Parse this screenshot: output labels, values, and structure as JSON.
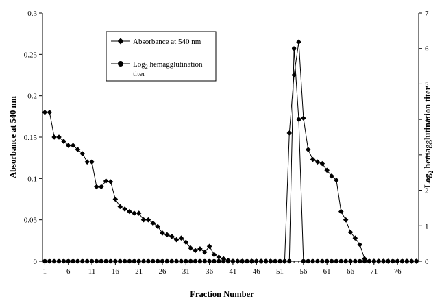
{
  "chart_data": {
    "type": "line",
    "title": "",
    "xlabel": "Fraction Number",
    "ylabel": "Absorbance at 540 nm",
    "ylabel_right": "Log₂ hemagglutination titer",
    "xlim": [
      0.5,
      80.5
    ],
    "xticks": [
      1,
      6,
      11,
      16,
      21,
      26,
      31,
      36,
      41,
      46,
      51,
      56,
      61,
      66,
      71,
      76
    ],
    "ylim": [
      0,
      0.3
    ],
    "yticks": [
      "0",
      "0.05",
      "0.1",
      "0.15",
      "0.2",
      "0.25",
      "0.3"
    ],
    "ylim_right": [
      0,
      7
    ],
    "yticks_right": [
      "0",
      "1",
      "2",
      "3",
      "4",
      "5",
      "6",
      "7"
    ],
    "grid": false,
    "legend_position": "top-center",
    "legend": [
      {
        "marker": "diamond",
        "label": "Absorbance at 540 nm"
      },
      {
        "marker": "circle",
        "label_prefix": "Log",
        "label_sub": "2",
        "label_suffix": " hemagglutination",
        "label_line2": "titer"
      }
    ],
    "series": [
      {
        "marker": "diamond",
        "axis": "left",
        "x": [
          1,
          2,
          3,
          4,
          5,
          6,
          7,
          8,
          9,
          10,
          11,
          12,
          13,
          14,
          15,
          16,
          17,
          18,
          19,
          20,
          21,
          22,
          23,
          24,
          25,
          26,
          27,
          28,
          29,
          30,
          31,
          32,
          33,
          34,
          35,
          36,
          37,
          38,
          39,
          40,
          41,
          42,
          43,
          44,
          45,
          46,
          47,
          48,
          49,
          50,
          51,
          52,
          53,
          54,
          55,
          56,
          57,
          58,
          59,
          60,
          61,
          62,
          63,
          64,
          65,
          66,
          67,
          68,
          69,
          70,
          71,
          72,
          73,
          74,
          75,
          76,
          77,
          78,
          79,
          80
        ],
        "values": [
          0.18,
          0.18,
          0.15,
          0.15,
          0.145,
          0.14,
          0.14,
          0.135,
          0.13,
          0.12,
          0.12,
          0.09,
          0.09,
          0.097,
          0.096,
          0.075,
          0.066,
          0.063,
          0.06,
          0.058,
          0.058,
          0.05,
          0.05,
          0.046,
          0.042,
          0.034,
          0.032,
          0.03,
          0.026,
          0.028,
          0.023,
          0.016,
          0.013,
          0.015,
          0.011,
          0.018,
          0.008,
          0.005,
          0.003,
          0.001,
          0,
          0,
          0,
          0,
          0,
          0,
          0,
          0,
          0,
          0,
          0,
          0,
          0.155,
          0.225,
          0.265,
          0.173,
          0.135,
          0.123,
          0.12,
          0.118,
          0.11,
          0.103,
          0.098,
          0.06,
          0.05,
          0.035,
          0.028,
          0.02,
          0.003,
          0,
          0,
          0,
          0,
          0,
          0,
          0,
          0,
          0,
          0,
          0
        ]
      },
      {
        "marker": "circle",
        "axis": "right",
        "x": [
          1,
          2,
          3,
          4,
          5,
          6,
          7,
          8,
          9,
          10,
          11,
          12,
          13,
          14,
          15,
          16,
          17,
          18,
          19,
          20,
          21,
          22,
          23,
          24,
          25,
          26,
          27,
          28,
          29,
          30,
          31,
          32,
          33,
          34,
          35,
          36,
          37,
          38,
          39,
          40,
          41,
          42,
          43,
          44,
          45,
          46,
          47,
          48,
          49,
          50,
          51,
          52,
          53,
          54,
          55,
          56,
          57,
          58,
          59,
          60,
          61,
          62,
          63,
          64,
          65,
          66,
          67,
          68,
          69,
          70,
          71,
          72,
          73,
          74,
          75,
          76,
          77,
          78,
          79,
          80
        ],
        "values": [
          0,
          0,
          0,
          0,
          0,
          0,
          0,
          0,
          0,
          0,
          0,
          0,
          0,
          0,
          0,
          0,
          0,
          0,
          0,
          0,
          0,
          0,
          0,
          0,
          0,
          0,
          0,
          0,
          0,
          0,
          0,
          0,
          0,
          0,
          0,
          0,
          0,
          0,
          0,
          0,
          0,
          0,
          0,
          0,
          0,
          0,
          0,
          0,
          0,
          0,
          0,
          0,
          0,
          6,
          4,
          0,
          0,
          0,
          0,
          0,
          0,
          0,
          0,
          0,
          0,
          0,
          0,
          0,
          0,
          0,
          0,
          0,
          0,
          0,
          0,
          0,
          0,
          0,
          0,
          0
        ]
      }
    ]
  }
}
